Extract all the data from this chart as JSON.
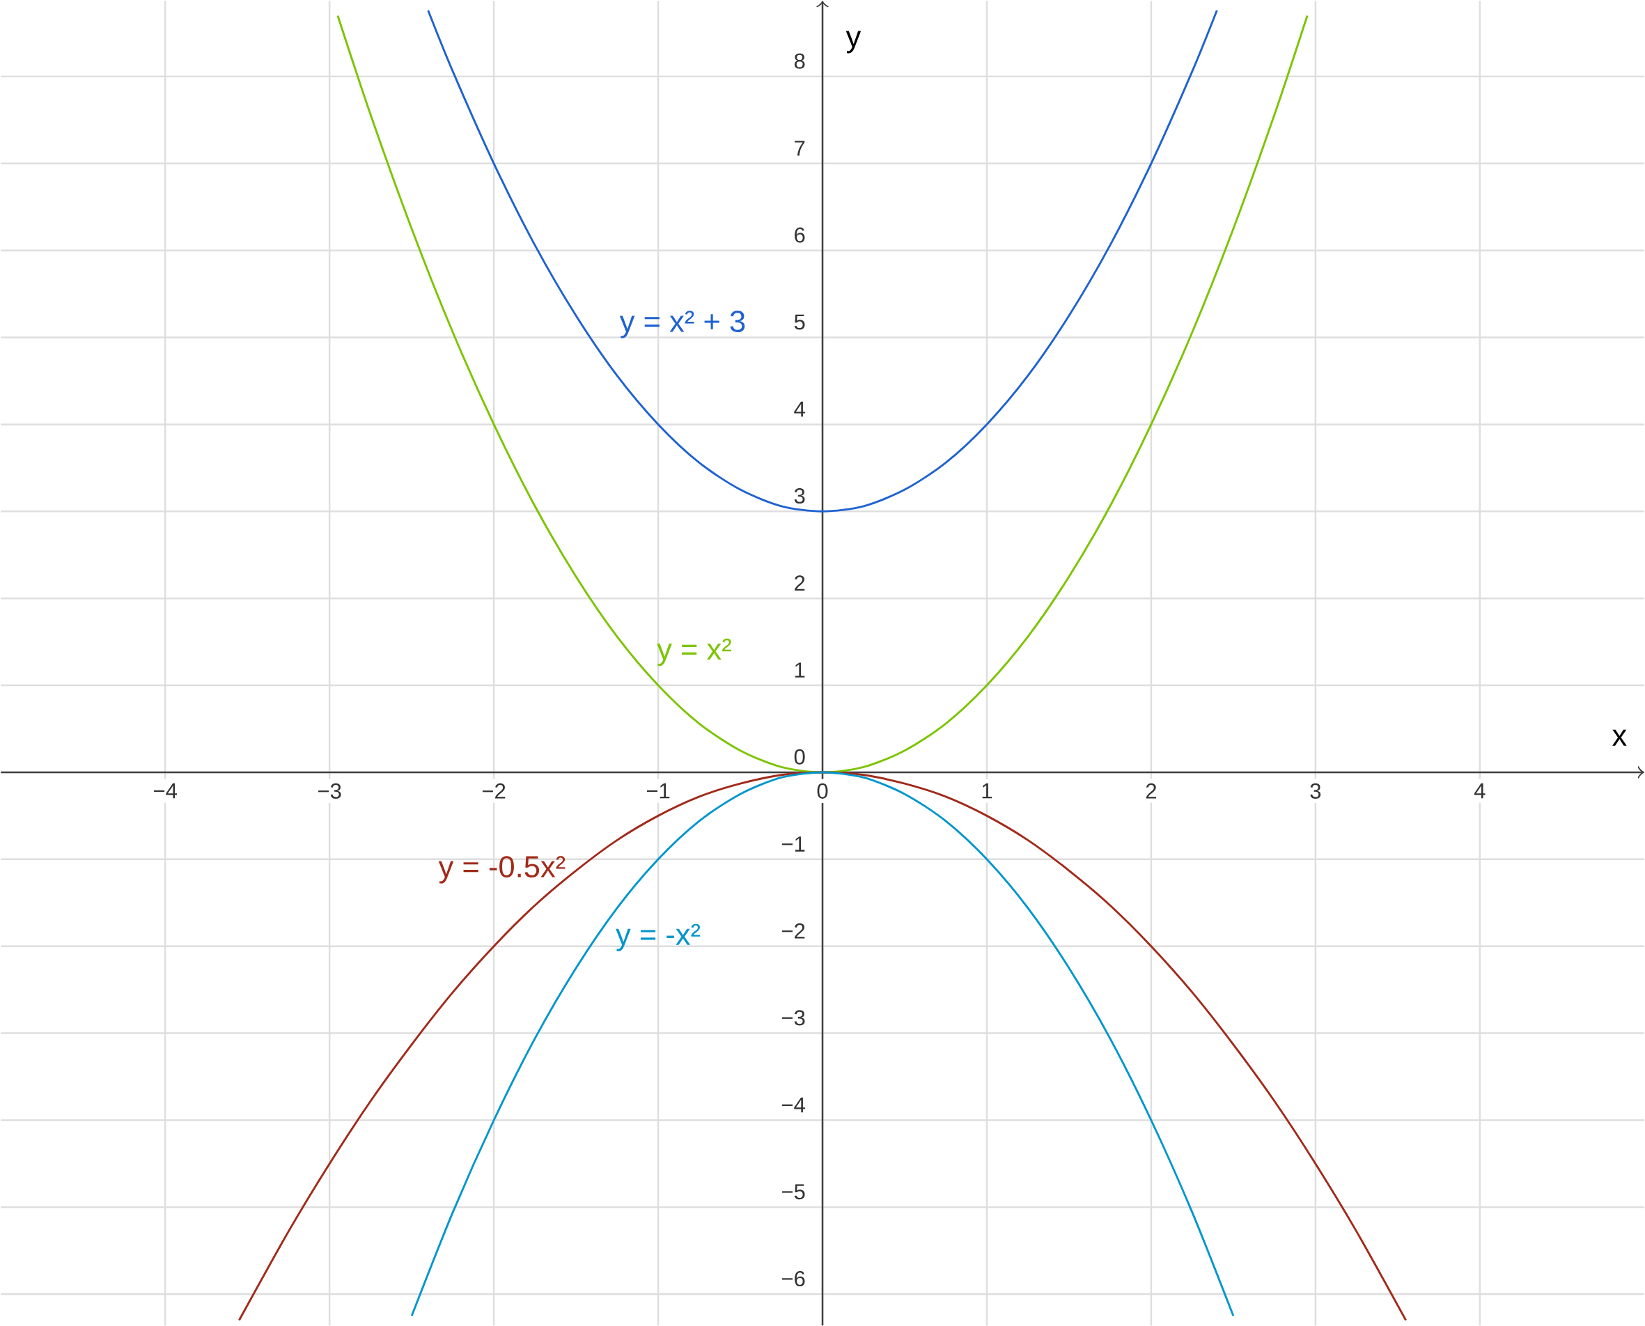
{
  "chart_data": {
    "type": "line",
    "xlabel": "x",
    "ylabel": "y",
    "xlim": [
      -5,
      5
    ],
    "ylim": [
      -6.36,
      8.87
    ],
    "xticks": [
      {
        "value": -4,
        "label": "−4"
      },
      {
        "value": -3,
        "label": "−3"
      },
      {
        "value": -2,
        "label": "−2"
      },
      {
        "value": -1,
        "label": "−1"
      },
      0,
      1,
      2,
      3,
      4
    ],
    "yticks": [
      {
        "value": -6,
        "label": "−6"
      },
      {
        "value": -5,
        "label": "−5"
      },
      {
        "value": -4,
        "label": "−4"
      },
      {
        "value": -3,
        "label": "−3"
      },
      {
        "value": -2,
        "label": "−2"
      },
      {
        "value": -1,
        "label": "−1"
      },
      0,
      1,
      2,
      3,
      4,
      5,
      6,
      7,
      8
    ],
    "grid": true,
    "marker": "none",
    "line_style": "solid",
    "series": [
      {
        "name": "y = x² + 3",
        "color": "#1e62d0",
        "x": [
          -2.4,
          -2.25,
          -2,
          -1.75,
          -1.5,
          -1.25,
          -1,
          -0.75,
          -0.5,
          -0.25,
          0,
          0.25,
          0.5,
          0.75,
          1,
          1.25,
          1.5,
          1.75,
          2,
          2.25,
          2.4
        ],
        "values": [
          8.76,
          8.06,
          7,
          6.06,
          5.25,
          4.56,
          4,
          3.56,
          3.25,
          3.06,
          3,
          3.06,
          3.25,
          3.56,
          4,
          4.56,
          5.25,
          6.06,
          7,
          8.06,
          8.76
        ]
      },
      {
        "name": "y = x²",
        "color": "#7cc400",
        "x": [
          -2.95,
          -2.75,
          -2.5,
          -2.25,
          -2,
          -1.75,
          -1.5,
          -1.25,
          -1,
          -0.75,
          -0.5,
          -0.25,
          0,
          0.25,
          0.5,
          0.75,
          1,
          1.25,
          1.5,
          1.75,
          2,
          2.25,
          2.5,
          2.75,
          2.95
        ],
        "values": [
          8.7,
          7.56,
          6.25,
          5.06,
          4,
          3.06,
          2.25,
          1.56,
          1,
          0.56,
          0.25,
          0.06,
          0,
          0.06,
          0.25,
          0.56,
          1,
          1.56,
          2.25,
          3.06,
          4,
          5.06,
          6.25,
          7.56,
          8.7
        ]
      },
      {
        "name": "y = -0.5x²",
        "color": "#a12a1a",
        "x": [
          -3.55,
          -3.25,
          -3,
          -2.75,
          -2.5,
          -2.25,
          -2,
          -1.75,
          -1.5,
          -1.25,
          -1,
          -0.75,
          -0.5,
          -0.25,
          0,
          0.25,
          0.5,
          0.75,
          1,
          1.25,
          1.5,
          1.75,
          2,
          2.25,
          2.5,
          2.75,
          3,
          3.25,
          3.55
        ],
        "values": [
          -6.3,
          -5.28,
          -4.5,
          -3.78,
          -3.13,
          -2.53,
          -2,
          -1.53,
          -1.13,
          -0.78,
          -0.5,
          -0.28,
          -0.13,
          -0.03,
          0,
          -0.03,
          -0.13,
          -0.28,
          -0.5,
          -0.78,
          -1.13,
          -1.53,
          -2,
          -2.53,
          -3.13,
          -3.78,
          -4.5,
          -5.28,
          -6.3
        ]
      },
      {
        "name": "y = -x²",
        "color": "#0096cc",
        "x": [
          -2.5,
          -2.25,
          -2,
          -1.75,
          -1.5,
          -1.25,
          -1,
          -0.75,
          -0.5,
          -0.25,
          0,
          0.25,
          0.5,
          0.75,
          1,
          1.25,
          1.5,
          1.75,
          2,
          2.25,
          2.5
        ],
        "values": [
          -6.25,
          -5.06,
          -4,
          -3.06,
          -2.25,
          -1.56,
          -1,
          -0.56,
          -0.25,
          -0.06,
          0,
          -0.06,
          -0.25,
          -0.56,
          -1,
          -1.56,
          -2.25,
          -3.06,
          -4,
          -5.06,
          -6.25
        ]
      }
    ]
  }
}
